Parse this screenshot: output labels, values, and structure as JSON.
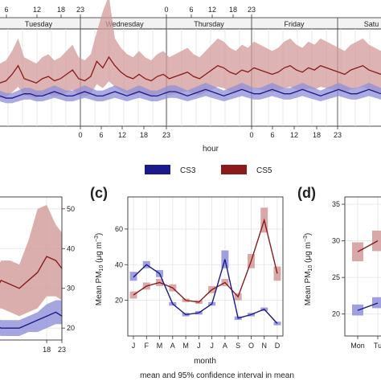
{
  "colors": {
    "cs3": "#1a1a8c",
    "cs5": "#8b1a1a",
    "cs3_fill": "#8f8fd8",
    "cs5_fill": "#d29a9a"
  },
  "top_panel": {
    "days": [
      "Tuesday",
      "Wednesday",
      "Thursday",
      "Friday",
      "Satu"
    ],
    "top_ticks": [
      "6",
      "12",
      "18",
      "23",
      "0",
      "6",
      "12",
      "18",
      "23"
    ],
    "bottom_ticks": [
      "0",
      "6",
      "12",
      "18",
      "23",
      "0",
      "6",
      "12",
      "18",
      "23"
    ],
    "xlabel": "hour"
  },
  "legend": [
    {
      "name": "CS3",
      "color": "#1a1a8c"
    },
    {
      "name": "CS5",
      "color": "#8b1a1a"
    }
  ],
  "panel_b": {
    "x_ticks": [
      "18",
      "23"
    ],
    "y_ticks": [
      "50",
      "40",
      "30",
      "20"
    ]
  },
  "panel_c": {
    "label": "(c)"
  },
  "panel_d": {
    "label": "(d)",
    "x_ticks": [
      "Mon",
      "Tu"
    ]
  },
  "caption": "mean and 95% confidence interval in mean",
  "chart_data": [
    {
      "type": "line",
      "panel": "top",
      "xlabel": "hour",
      "note": "weekly hourly profile, day panels Tuesday–Saturday",
      "series": [
        {
          "name": "CS5",
          "color": "#8b1a1a",
          "values": [
            20,
            21,
            24,
            28,
            22,
            21,
            20,
            22,
            23,
            21,
            22,
            24,
            26,
            22,
            21,
            23,
            30,
            27,
            32,
            28,
            25,
            23,
            22,
            24,
            22,
            21,
            23,
            24,
            22,
            23,
            24,
            25,
            23,
            22,
            24,
            26,
            28,
            27,
            25,
            24,
            26,
            25,
            27,
            26,
            25,
            24,
            25,
            27,
            28,
            26,
            25,
            27,
            26,
            28,
            27,
            26,
            25,
            24,
            26,
            27,
            28,
            26,
            25,
            24
          ]
        },
        {
          "name": "CS3",
          "color": "#1a1a8c",
          "values": [
            14,
            13,
            13,
            14,
            15,
            15,
            14,
            14,
            15,
            16,
            15,
            14,
            14,
            15,
            16,
            15,
            14,
            14,
            15,
            16,
            15,
            14,
            15,
            16,
            15,
            14,
            14,
            15,
            16,
            16,
            15,
            14,
            15,
            16,
            17,
            16,
            15,
            14,
            15,
            16,
            17,
            16,
            15,
            15,
            16,
            17,
            16,
            15,
            15,
            16,
            17,
            16,
            15,
            14,
            15,
            16,
            17,
            16,
            15,
            15,
            16,
            17,
            16,
            15
          ]
        }
      ]
    },
    {
      "type": "line",
      "panel": "b",
      "x_ticks": [
        "18",
        "23"
      ],
      "ylim": [
        17,
        53
      ],
      "series": [
        {
          "name": "CS5",
          "x": [
            0,
            3,
            6,
            9,
            12,
            15,
            18,
            21,
            23
          ],
          "values": [
            28,
            32,
            31,
            30,
            32,
            34,
            38,
            37,
            35
          ],
          "lower": [
            24,
            25,
            24,
            23,
            24,
            25,
            28,
            28,
            27
          ],
          "upper": [
            33,
            37,
            37,
            36,
            42,
            50,
            51,
            46,
            44
          ]
        },
        {
          "name": "CS3",
          "x": [
            0,
            3,
            6,
            9,
            12,
            15,
            18,
            21,
            23
          ],
          "values": [
            21,
            20,
            20,
            20,
            21,
            22,
            23,
            24,
            23
          ],
          "lower": [
            19,
            18,
            18,
            18,
            19,
            19,
            20,
            21,
            21
          ],
          "upper": [
            23,
            22,
            22,
            22,
            23,
            24,
            26,
            27,
            27
          ]
        }
      ]
    },
    {
      "type": "line",
      "panel": "c",
      "title": "(c)",
      "xlabel": "month",
      "ylabel": "Mean PM10 (μg m⁻³)",
      "categories": [
        "J",
        "F",
        "M",
        "A",
        "M",
        "J",
        "J",
        "A",
        "S",
        "O",
        "N",
        "D"
      ],
      "y_ticks": [
        20,
        40,
        60
      ],
      "ylim": [
        0,
        78
      ],
      "series": [
        {
          "name": "CS5",
          "color": "#8b1a1a",
          "values": [
            23,
            28,
            30,
            27,
            20,
            19,
            26,
            30,
            22,
            42,
            65,
            35
          ],
          "lower": [
            21,
            26,
            28,
            25,
            19,
            18,
            24,
            28,
            20,
            38,
            58,
            31
          ],
          "upper": [
            25,
            30,
            32,
            29,
            21,
            20,
            28,
            32,
            24,
            46,
            72,
            39
          ]
        },
        {
          "name": "CS3",
          "color": "#1a1a8c",
          "values": [
            33,
            40,
            35,
            18,
            12,
            13,
            18,
            43,
            10,
            12,
            15,
            7
          ],
          "lower": [
            31,
            38,
            33,
            17,
            11,
            12,
            17,
            38,
            9,
            11,
            14,
            6
          ],
          "upper": [
            36,
            42,
            37,
            19,
            13,
            14,
            19,
            48,
            11,
            13,
            16,
            8
          ]
        }
      ]
    },
    {
      "type": "line",
      "panel": "d",
      "title": "(d)",
      "ylabel": "Mean PM10 (μg m⁻³)",
      "categories": [
        "Mon",
        "Tu"
      ],
      "y_ticks": [
        20,
        25,
        30,
        35
      ],
      "ylim": [
        17,
        36
      ],
      "series": [
        {
          "name": "CS5",
          "color": "#8b1a1a",
          "values": [
            28.5,
            30
          ],
          "lower": [
            27.2,
            28.6
          ],
          "upper": [
            29.8,
            31.4
          ]
        },
        {
          "name": "CS3",
          "color": "#1a1a8c",
          "values": [
            20.5,
            21.5
          ],
          "lower": [
            19.8,
            20.8
          ],
          "upper": [
            21.3,
            22.3
          ]
        }
      ]
    }
  ]
}
